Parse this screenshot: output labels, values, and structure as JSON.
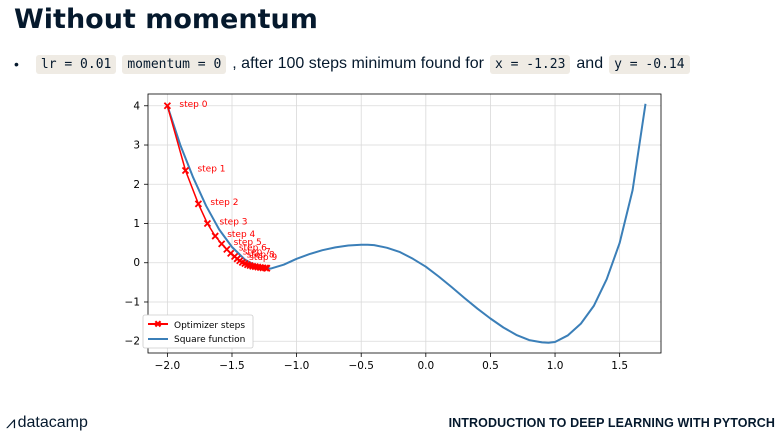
{
  "slide": {
    "title": "Without momentum",
    "bullet": {
      "code1": "lr = 0.01",
      "code2": "momentum = 0",
      "text1": ", after 100 steps minimum found for",
      "code3": "x = -1.23",
      "text2": "and",
      "code4": "y = -0.14"
    }
  },
  "footer": {
    "brand": "datacamp",
    "course_title": "INTRODUCTION TO DEEP LEARNING WITH PYTORCH"
  },
  "chart_data": {
    "type": "line",
    "xlim": [
      -2.15,
      1.82
    ],
    "ylim": [
      -2.3,
      4.3
    ],
    "xticks": [
      -2.0,
      -1.5,
      -1.0,
      -0.5,
      0.0,
      0.5,
      1.0,
      1.5
    ],
    "yticks": [
      -2,
      -1,
      0,
      1,
      2,
      3,
      4
    ],
    "xtick_labels": [
      "−2.0",
      "−1.5",
      "−1.0",
      "−0.5",
      "0.0",
      "0.5",
      "1.0",
      "1.5"
    ],
    "ytick_labels": [
      "−2",
      "−1",
      "0",
      "1",
      "2",
      "3",
      "4"
    ],
    "grid": true,
    "legend_position": "lower-left",
    "series": [
      {
        "name": "Optimizer steps",
        "color": "#ff0000",
        "marker": "x",
        "x": [
          -2.0,
          -1.86,
          -1.76,
          -1.69,
          -1.63,
          -1.58,
          -1.54,
          -1.51,
          -1.48,
          -1.46,
          -1.44,
          -1.42,
          -1.4,
          -1.38,
          -1.36,
          -1.34,
          -1.32,
          -1.3,
          -1.28,
          -1.26,
          -1.24,
          -1.23
        ],
        "y": [
          4.0,
          2.35,
          1.5,
          1.0,
          0.68,
          0.48,
          0.34,
          0.24,
          0.16,
          0.1,
          0.05,
          0.01,
          -0.02,
          -0.05,
          -0.07,
          -0.09,
          -0.1,
          -0.11,
          -0.12,
          -0.13,
          -0.135,
          -0.14
        ]
      },
      {
        "name": "Square function",
        "color": "#3b7fb8",
        "x": [
          -2.0,
          -1.9,
          -1.8,
          -1.7,
          -1.6,
          -1.5,
          -1.4,
          -1.3,
          -1.2,
          -1.1,
          -1.0,
          -0.9,
          -0.8,
          -0.7,
          -0.6,
          -0.5,
          -0.45,
          -0.4,
          -0.3,
          -0.2,
          -0.1,
          0.0,
          0.1,
          0.2,
          0.3,
          0.4,
          0.5,
          0.6,
          0.7,
          0.8,
          0.9,
          0.95,
          1.0,
          1.1,
          1.2,
          1.3,
          1.4,
          1.5,
          1.6,
          1.7
        ],
        "y": [
          4.0,
          3.0,
          2.17,
          1.45,
          0.85,
          0.4,
          0.08,
          -0.1,
          -0.15,
          -0.05,
          0.1,
          0.22,
          0.32,
          0.39,
          0.44,
          0.46,
          0.46,
          0.45,
          0.38,
          0.27,
          0.1,
          -0.1,
          -0.35,
          -0.62,
          -0.9,
          -1.17,
          -1.42,
          -1.65,
          -1.84,
          -1.97,
          -2.03,
          -2.04,
          -2.02,
          -1.85,
          -1.55,
          -1.1,
          -0.42,
          0.5,
          1.85,
          4.05
        ]
      }
    ],
    "annotations": [
      {
        "text": "step 0",
        "x": -2.0,
        "y": 4.0
      },
      {
        "text": "step 1",
        "x": -1.86,
        "y": 2.35
      },
      {
        "text": "step 2",
        "x": -1.76,
        "y": 1.5
      },
      {
        "text": "step 3",
        "x": -1.69,
        "y": 1.0
      },
      {
        "text": "step 4",
        "x": -1.63,
        "y": 0.68
      },
      {
        "text": "step 5",
        "x": -1.58,
        "y": 0.48
      },
      {
        "text": "step 6",
        "x": -1.54,
        "y": 0.34
      },
      {
        "text": "step 7",
        "x": -1.51,
        "y": 0.24
      },
      {
        "text": "step 8",
        "x": -1.48,
        "y": 0.16
      },
      {
        "text": "step 9",
        "x": -1.46,
        "y": 0.1
      }
    ]
  }
}
